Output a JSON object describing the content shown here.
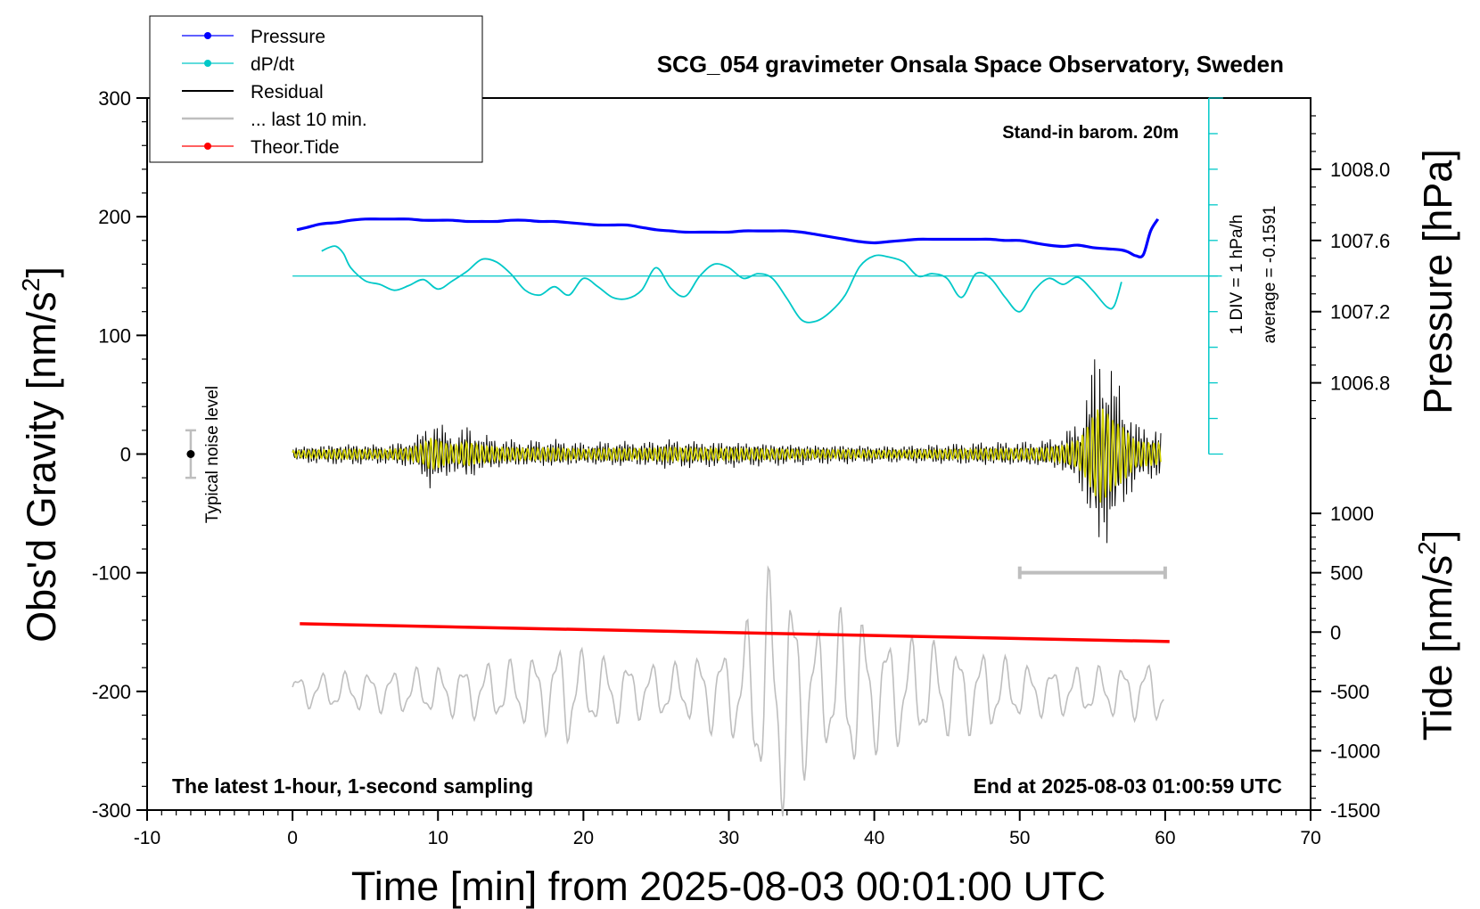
{
  "chart_data": {
    "type": "line",
    "title": "SCG_054 gravimeter Onsala Space Observatory, Sweden",
    "subtitle": "Stand-in barom. 20m",
    "xlabel": "Time [min] from 2025-08-03 00:01:00 UTC",
    "ylabel_left": "Obs'd Gravity [nm/s",
    "ylabel_left_sup": "2",
    "ylabel_left_end": "]",
    "ylabel_right_top": "Pressure [hPa]",
    "ylabel_right_bottom": "Tide [nm/s",
    "ylabel_right_bottom_sup": "2",
    "ylabel_right_bottom_end": "]",
    "xlim": [
      -10,
      70
    ],
    "ylim": [
      -300,
      300
    ],
    "x_ticks": [
      "-10",
      "0",
      "10",
      "20",
      "30",
      "40",
      "50",
      "60",
      "70"
    ],
    "x_tick_values": [
      -10,
      0,
      10,
      20,
      30,
      40,
      50,
      60,
      70
    ],
    "y_ticks": [
      "300",
      "200",
      "100",
      "0",
      "-100",
      "-200",
      "-300"
    ],
    "y_tick_values": [
      300,
      200,
      100,
      0,
      -100,
      -200,
      -300
    ],
    "pressure_axis": {
      "ticks": [
        "1008.0",
        "1007.6",
        "1007.2",
        "1006.8"
      ],
      "tick_values": [
        1008.0,
        1007.6,
        1007.2,
        1006.8
      ],
      "gravity_at_1008": 240,
      "gravity_per_hpa": 150
    },
    "tide_axis": {
      "ticks": [
        "1000",
        "500",
        "0",
        "-500",
        "-1000",
        "-1500"
      ],
      "tick_values": [
        1000,
        500,
        0,
        -500,
        -1000,
        -1500
      ],
      "gravity_at_0": -150,
      "gravity_per_unit": 0.1
    },
    "legend": {
      "position": "top-left",
      "entries": [
        {
          "label": "Pressure",
          "color": "#0000ff",
          "marker": true
        },
        {
          "label": "dP/dt",
          "color": "#00c8c8",
          "marker": true
        },
        {
          "label": "Residual",
          "color": "#000000",
          "marker": false
        },
        {
          "label": "... last 10 min.",
          "color": "#bebebe",
          "marker": false
        },
        {
          "label": "Theor.Tide",
          "color": "#ff0000",
          "marker": true
        }
      ]
    },
    "dpdt_scale": {
      "label1": "1 DIV = 1 hPa/h",
      "label2": "average = -0.1591",
      "x": 63,
      "y_range": [
        0,
        300
      ],
      "divisions": 10,
      "baseline": 150
    },
    "noise_level": {
      "label": "Typical noise level",
      "x": -7,
      "y": 0,
      "half_range": 20
    },
    "ten_min_bar": {
      "x_range": [
        50,
        60
      ],
      "y": -100
    },
    "annotations": {
      "bottom_left": "The latest 1-hour, 1-second sampling",
      "bottom_right": "End at 2025-08-03 01:00:59 UTC"
    },
    "colors": {
      "pressure": "#0000ff",
      "dpdt": "#00c8c8",
      "residual": "#000000",
      "residual_smooth": "#d4d400",
      "last10": "#bebebe",
      "tide": "#ff0000"
    },
    "series": [
      {
        "name": "Pressure",
        "x": [
          0.3,
          1,
          2,
          3,
          4,
          5,
          6,
          7,
          8,
          9,
          10,
          11,
          12,
          13,
          14,
          15,
          16,
          17,
          18,
          19,
          20,
          21,
          22,
          23,
          24,
          25,
          26,
          27,
          28,
          29,
          30,
          31,
          32,
          33,
          34,
          35,
          36,
          37,
          38,
          39,
          40,
          41,
          42,
          43,
          44,
          45,
          46,
          47,
          48,
          49,
          50,
          51,
          52,
          53,
          54,
          55,
          56,
          57,
          57.5,
          58,
          58.5,
          59,
          59.5
        ],
        "y": [
          189,
          191,
          194,
          195,
          197,
          198,
          198,
          198,
          198,
          197,
          197,
          197,
          196,
          196,
          196,
          197,
          197,
          196,
          196,
          195,
          194,
          193,
          193,
          193,
          191,
          189,
          188,
          187,
          187,
          187,
          187,
          188,
          188,
          188,
          188,
          187,
          185,
          183,
          181,
          179,
          178,
          179,
          180,
          181,
          181,
          181,
          181,
          181,
          181,
          180,
          180,
          178,
          176,
          175,
          176,
          174,
          173,
          172,
          170,
          167,
          168,
          188,
          198
        ]
      },
      {
        "name": "dP/dt",
        "x": [
          2,
          2.5,
          3,
          3.5,
          4,
          5,
          6,
          7,
          8,
          9,
          10,
          11,
          12,
          13,
          14,
          15,
          16,
          17,
          18,
          19,
          20,
          21,
          22,
          23,
          24,
          25,
          26,
          27,
          28,
          29,
          30,
          31,
          32,
          33,
          34,
          35,
          36,
          37,
          38,
          39,
          40,
          41,
          42,
          43,
          44,
          45,
          46,
          47,
          48,
          49,
          50,
          51,
          52,
          53,
          54,
          55,
          56,
          56.5,
          57
        ],
        "y": [
          171,
          174,
          175,
          169,
          157,
          146,
          143,
          138,
          142,
          147,
          139,
          146,
          154,
          164,
          162,
          152,
          138,
          134,
          141,
          134,
          148,
          141,
          132,
          131,
          138,
          157,
          140,
          133,
          150,
          160,
          157,
          148,
          152,
          148,
          131,
          113,
          112,
          120,
          134,
          158,
          167,
          166,
          162,
          150,
          152,
          148,
          132,
          152,
          148,
          132,
          120,
          138,
          148,
          143,
          149,
          138,
          124,
          125,
          145
        ]
      },
      {
        "name": "Theor.Tide",
        "x": [
          0.5,
          60.3
        ],
        "y": [
          -143,
          -158
        ]
      }
    ],
    "residual_envelope": {
      "x": [
        0,
        2,
        4,
        6,
        8,
        9,
        9.5,
        10,
        11,
        12,
        13,
        14,
        16,
        18,
        20,
        22,
        24,
        26,
        28,
        30,
        32,
        34,
        36,
        38,
        40,
        42,
        44,
        46,
        48,
        50,
        51,
        52,
        53,
        54,
        54.5,
        55,
        55.5,
        56,
        56.5,
        57,
        57.5,
        58,
        59,
        59.7
      ],
      "amp": [
        7,
        9,
        10,
        9,
        12,
        22,
        35,
        30,
        18,
        26,
        18,
        14,
        12,
        13,
        10,
        12,
        11,
        14,
        12,
        12,
        11,
        10,
        9,
        9,
        8,
        8,
        9,
        10,
        11,
        11,
        12,
        13,
        18,
        30,
        50,
        80,
        105,
        90,
        70,
        62,
        45,
        28,
        25,
        22
      ]
    },
    "last10_envelope": {
      "x": [
        0,
        5,
        10,
        15,
        18,
        19,
        20,
        24,
        27,
        28,
        30,
        31,
        32,
        33,
        34,
        35,
        36,
        37,
        38,
        39,
        40,
        42,
        44,
        46,
        48,
        50,
        52,
        55,
        58,
        60
      ],
      "amp": [
        15,
        18,
        22,
        28,
        40,
        50,
        35,
        25,
        25,
        35,
        40,
        55,
        90,
        120,
        110,
        80,
        60,
        55,
        80,
        70,
        55,
        50,
        45,
        40,
        35,
        25,
        22,
        22,
        25,
        30
      ]
    }
  }
}
